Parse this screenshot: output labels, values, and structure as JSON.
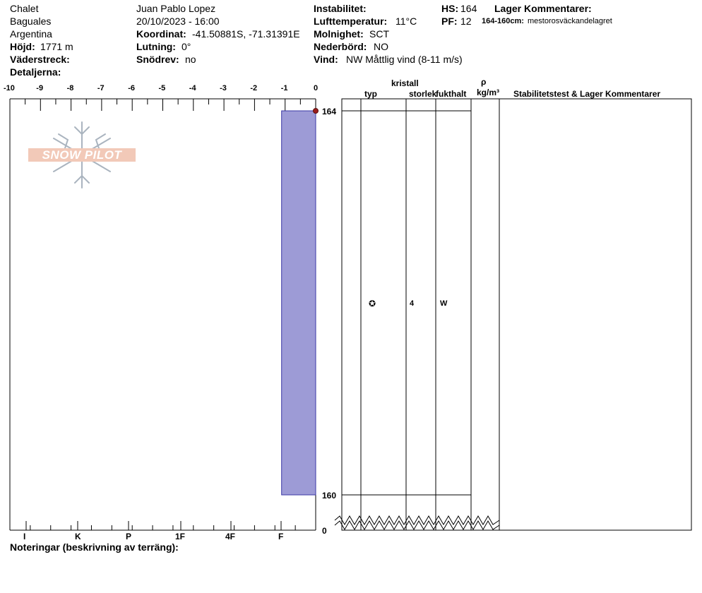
{
  "header": {
    "col1": {
      "location": "Chalet",
      "range": "Baguales",
      "country": "Argentina",
      "elevation_label": "Höjd:",
      "elevation_value": "1771 m",
      "aspect_label": "Väderstreck:",
      "details_label": "Detaljerna:"
    },
    "col2": {
      "observer": "Juan Pablo  Lopez",
      "datetime": "20/10/2023 - 16:00",
      "coord_label": "Koordinat:",
      "coord_value": "-41.50881S, -71.31391E",
      "slope_label": "Lutning:",
      "slope_value": "0°",
      "drift_label": "Snödrev:",
      "drift_value": "no"
    },
    "col3": {
      "instability_label": "Instabilitet:",
      "airtemp_label": "Lufttemperatur:",
      "airtemp_value": "11°C",
      "sky_label": "Molnighet:",
      "sky_value": "SCT",
      "precip_label": "Nederbörd:",
      "precip_value": "NO",
      "wind_label": "Vind:",
      "wind_value": "NW Måttlig vind (8-11 m/s)"
    },
    "col4": {
      "hs_label": "HS:",
      "hs_value": "164",
      "pf_label": "PF:",
      "pf_value": "12",
      "layer_comments_label": "Lager Kommentarer:",
      "layer_comment_range": "164-160cm:",
      "layer_comment_text": "mestorosväckandelagret"
    }
  },
  "logo": {
    "text": "SNOW PILOT"
  },
  "table_headers": {
    "crystal": "kristall",
    "type": "typ",
    "size": "storlek",
    "moisture": "fukthalt",
    "rho": "ρ",
    "density_unit": "kg/m³",
    "stability": "Stabilitetstest & Lager Kommentarer"
  },
  "layer_row": {
    "grain_symbol": "✪",
    "size": "4",
    "moisture": "W"
  },
  "notes_label": "Noteringar (beskrivning av terräng):",
  "chart_data": {
    "type": "bar",
    "title": "",
    "x_axis_top_ticks": [
      -10,
      -9,
      -8,
      -7,
      -6,
      -5,
      -4,
      -3,
      -2,
      -1,
      0
    ],
    "x_axis_top_range": [
      -10,
      0
    ],
    "hardness_ticks": [
      "I",
      "K",
      "P",
      "1F",
      "4F",
      "F"
    ],
    "depth_labels": [
      "164",
      "160",
      "0"
    ],
    "hs": 164,
    "layers": [
      {
        "top": 164,
        "bottom": 160,
        "hardness": "F",
        "hardness_index": -1
      }
    ],
    "temperature_points": [
      {
        "depth": 164,
        "temp": 0
      }
    ],
    "colors": {
      "layer_fill": "#9d9bd6",
      "layer_stroke": "#3a37a6",
      "temp_point": "#9a1c1c"
    }
  }
}
